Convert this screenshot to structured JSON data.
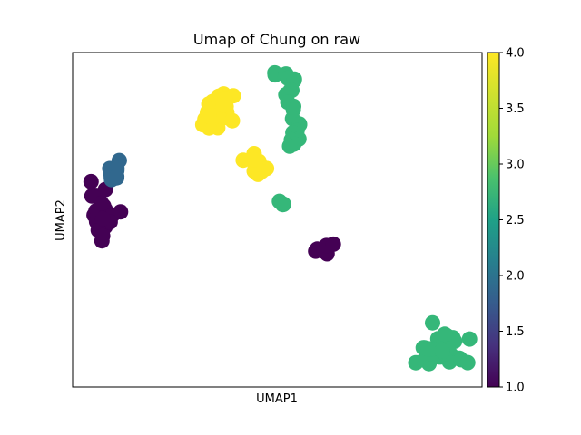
{
  "chart_data": {
    "type": "scatter",
    "title": "Umap of Chung on raw",
    "xlabel": "UMAP1",
    "ylabel": "UMAP2",
    "x_ticks_shown": false,
    "y_ticks_shown": false,
    "xlim": [
      0,
      100
    ],
    "ylim": [
      0,
      100
    ],
    "colorbar": {
      "colormap": "viridis",
      "range": [
        1.0,
        4.0
      ],
      "ticks": [
        "1.0",
        "1.5",
        "2.0",
        "2.5",
        "3.0",
        "3.5",
        "4.0"
      ]
    },
    "clusters": [
      {
        "name": "cluster-left-dark",
        "value": 1.0,
        "color": "#440154",
        "center": [
          7,
          51
        ],
        "spread": [
          2.2,
          6.5
        ],
        "count": 34
      },
      {
        "name": "cluster-left-blue",
        "value": 2.0,
        "color": "#31688e",
        "center": [
          10,
          64.5
        ],
        "spread": [
          2.2,
          3.2
        ],
        "count": 12
      },
      {
        "name": "cluster-center-dark",
        "value": 1.0,
        "color": "#440154",
        "center": [
          61,
          41
        ],
        "spread": [
          2.8,
          1.4
        ],
        "count": 8
      },
      {
        "name": "cluster-right-green",
        "value": 3.0,
        "color": "#35b779",
        "center": [
          89.5,
          11
        ],
        "spread": [
          5.5,
          4.5
        ],
        "count": 45
      },
      {
        "name": "cluster-mid-green-small",
        "value": 3.0,
        "color": "#35b779",
        "center": [
          51,
          55
        ],
        "spread": [
          1.4,
          1
        ],
        "count": 4
      },
      {
        "name": "cluster-yellow-top",
        "value": 4.0,
        "color": "#fde725",
        "center": [
          35,
          82
        ],
        "spread": [
          4,
          5
        ],
        "count": 40
      },
      {
        "name": "cluster-yellow-trail",
        "value": 4.0,
        "color": "#fde725",
        "center": [
          46,
          67
        ],
        "spread": [
          3.5,
          4
        ],
        "count": 10
      }
    ],
    "green_arc": {
      "value": 3.0,
      "color": "#35b779",
      "path": [
        [
          49,
          94
        ],
        [
          52,
          93
        ],
        [
          54,
          91
        ],
        [
          53,
          87
        ],
        [
          54,
          82
        ],
        [
          55,
          78
        ],
        [
          55,
          74
        ],
        [
          53,
          72
        ]
      ]
    }
  }
}
